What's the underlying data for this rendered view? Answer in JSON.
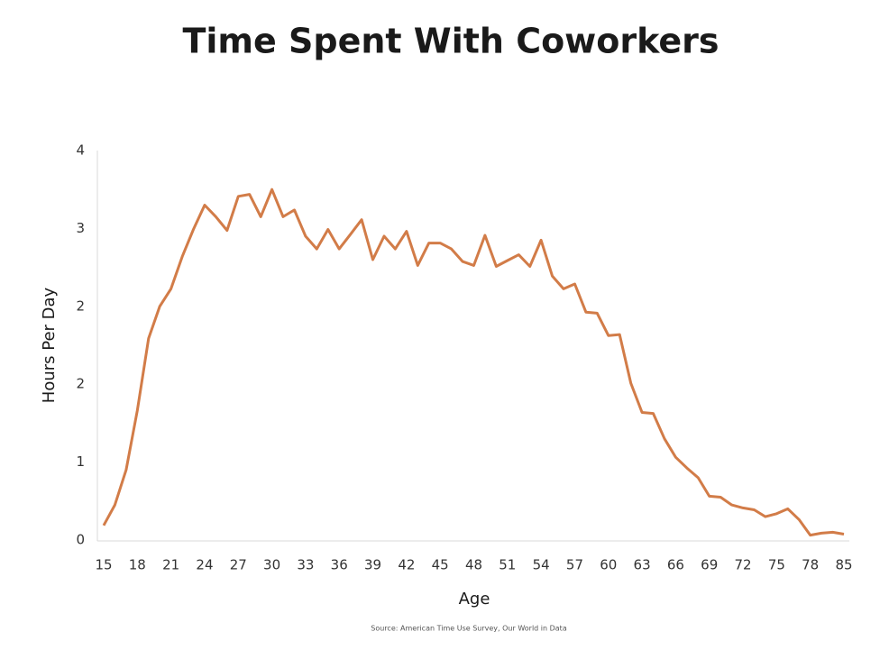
{
  "chart_data": {
    "type": "line",
    "title": "Time Spent With Coworkers",
    "x_label": "Age",
    "y_label": "Hours Per Day",
    "source": "Source: American Time Use Survey, Our World in Data",
    "categories": [
      "15",
      null,
      null,
      "18",
      null,
      null,
      "21",
      null,
      null,
      "24",
      null,
      null,
      "27",
      null,
      null,
      "30",
      null,
      null,
      "33",
      null,
      null,
      "36",
      null,
      null,
      "39",
      null,
      null,
      "42",
      null,
      null,
      "45",
      null,
      null,
      "48",
      null,
      null,
      "51",
      null,
      null,
      "54",
      null,
      null,
      "57",
      null,
      null,
      "60",
      null,
      null,
      "63",
      null,
      null,
      "66",
      null,
      null,
      "69",
      null,
      null,
      "72",
      null,
      null,
      "75",
      null,
      null,
      "78",
      null,
      null,
      "85"
    ],
    "series": [
      {
        "name": "Hours Per Day",
        "color": "#d27c48",
        "values": [
          0.15,
          0.36,
          0.72,
          1.33,
          2.07,
          2.4,
          2.58,
          2.91,
          3.19,
          3.44,
          3.32,
          3.18,
          3.53,
          3.55,
          3.32,
          3.6,
          3.32,
          3.39,
          3.12,
          2.99,
          3.19,
          2.99,
          3.14,
          3.29,
          2.88,
          3.12,
          2.99,
          3.17,
          2.82,
          3.05,
          3.05,
          2.99,
          2.86,
          2.82,
          3.13,
          2.81,
          2.87,
          2.93,
          2.81,
          3.08,
          2.71,
          2.58,
          2.63,
          2.34,
          2.33,
          2.1,
          2.11,
          1.61,
          1.31,
          1.3,
          1.04,
          0.85,
          0.74,
          0.64,
          0.45,
          0.44,
          0.36,
          0.33,
          0.31,
          0.24,
          0.27,
          0.32,
          0.21,
          0.05,
          0.07,
          0.08,
          0.06
        ]
      }
    ],
    "ylim": [
      0,
      4
    ],
    "yticks": [
      0,
      {
        "value": 0.8,
        "label": "1"
      },
      {
        "value": 1.6,
        "label": "2"
      },
      {
        "value": 2.4,
        "label": "2"
      },
      {
        "value": 3.2,
        "label": "3"
      },
      4
    ],
    "grid": false
  }
}
